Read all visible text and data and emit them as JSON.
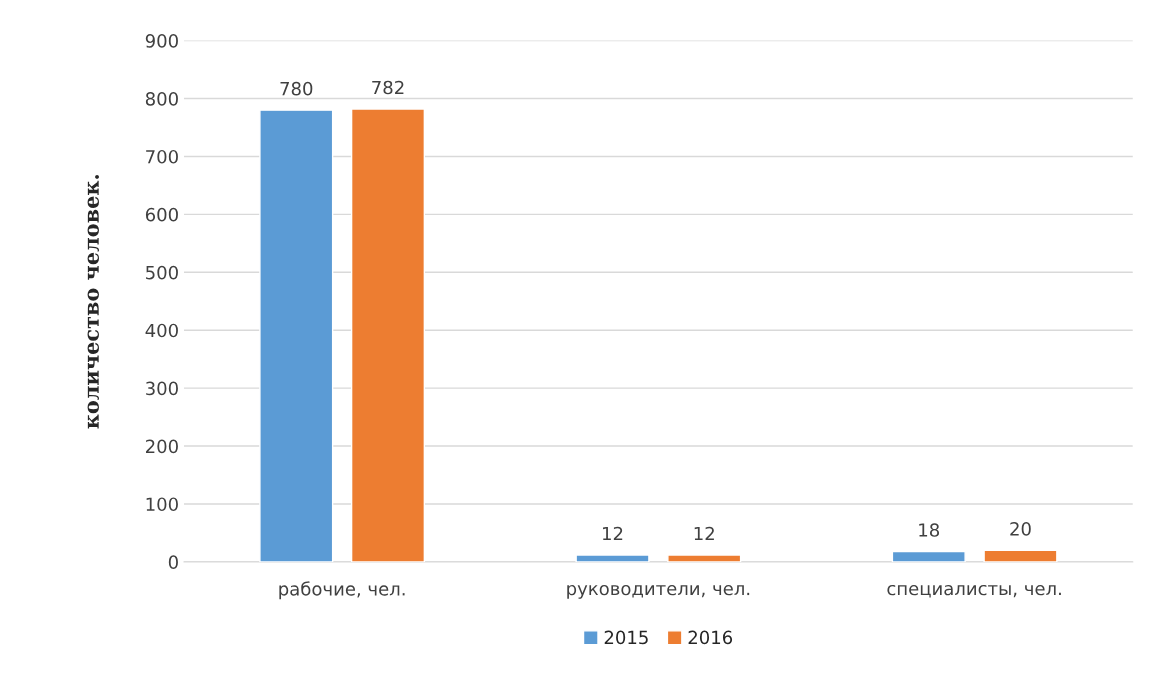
{
  "chart_data": {
    "type": "bar",
    "ylabel": "количество человек.",
    "categories": [
      "рабочие, чел.",
      "руководители, чел.",
      "специалисты, чел."
    ],
    "series": [
      {
        "name": "2015",
        "color": "#5b9bd5",
        "values": [
          780,
          12,
          18
        ]
      },
      {
        "name": "2016",
        "color": "#ed7d31",
        "values": [
          782,
          12,
          20
        ]
      }
    ],
    "ylim": [
      0,
      900
    ],
    "yticks": [
      0,
      100,
      200,
      300,
      400,
      500,
      600,
      700,
      800,
      900
    ],
    "grid": "y",
    "legend": "bottom",
    "data_labels": true
  }
}
